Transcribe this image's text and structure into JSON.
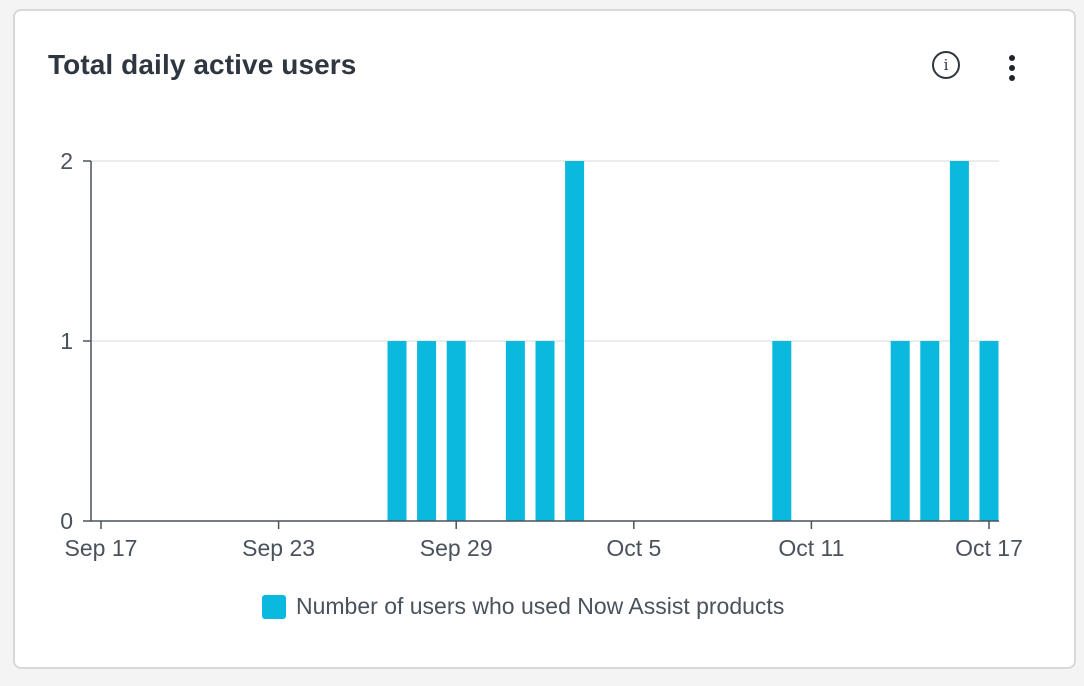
{
  "card": {
    "title": "Total daily active users",
    "info_icon_glyph": "i",
    "icons": {
      "info": "info-circle-icon",
      "more": "more-vertical-icon"
    }
  },
  "chart_data": {
    "type": "bar",
    "title": "Total daily active users",
    "xlabel": "",
    "ylabel": "",
    "ylim": [
      0,
      2
    ],
    "y_ticks": [
      "0",
      "1",
      "2"
    ],
    "x_tick_labels": [
      "Sep 17",
      "Sep 23",
      "Sep 29",
      "Oct 5",
      "Oct 11",
      "Oct 17"
    ],
    "categories": [
      "Sep 17",
      "Sep 18",
      "Sep 19",
      "Sep 20",
      "Sep 21",
      "Sep 22",
      "Sep 23",
      "Sep 24",
      "Sep 25",
      "Sep 26",
      "Sep 27",
      "Sep 28",
      "Sep 29",
      "Sep 30",
      "Oct 1",
      "Oct 2",
      "Oct 3",
      "Oct 4",
      "Oct 5",
      "Oct 6",
      "Oct 7",
      "Oct 8",
      "Oct 9",
      "Oct 10",
      "Oct 11",
      "Oct 12",
      "Oct 13",
      "Oct 14",
      "Oct 15",
      "Oct 16",
      "Oct 17"
    ],
    "series": [
      {
        "name": "Number of users who used Now Assist products",
        "color": "#0bb8de",
        "values": [
          0,
          0,
          0,
          0,
          0,
          0,
          0,
          0,
          0,
          0,
          1,
          1,
          1,
          0,
          1,
          1,
          2,
          0,
          0,
          0,
          0,
          0,
          0,
          1,
          0,
          0,
          0,
          1,
          1,
          2,
          1
        ]
      }
    ],
    "grid": true,
    "legend_position": "bottom-center"
  }
}
